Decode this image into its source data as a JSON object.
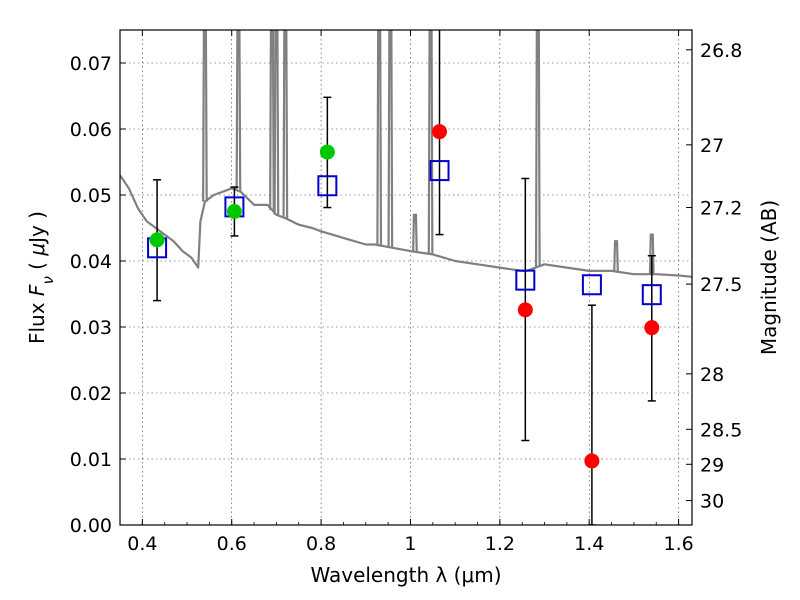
{
  "chart_data": {
    "type": "scatter",
    "title": "",
    "xlabel": "Wavelength  λ (μm)",
    "ylabel": "Flux  F_ν  ( μJy )",
    "ylabel_right": "Magnitude (AB)",
    "xlim": [
      0.35,
      1.63
    ],
    "ylim": [
      0.0,
      0.075
    ],
    "grid": true,
    "x_ticks": [
      0.4,
      0.6,
      0.8,
      1.0,
      1.2,
      1.4,
      1.6
    ],
    "x_tick_labels": [
      "0.4",
      "0.6",
      "0.8",
      "1",
      "1.2",
      "1.4",
      "1.6"
    ],
    "y_ticks": [
      0.0,
      0.01,
      0.02,
      0.03,
      0.04,
      0.05,
      0.06,
      0.07
    ],
    "y_tick_labels": [
      "0.00",
      "0.01",
      "0.02",
      "0.03",
      "0.04",
      "0.05",
      "0.06",
      "0.07"
    ],
    "right_ticks": [
      {
        "flux": 0.072,
        "label": "26.8"
      },
      {
        "flux": 0.0576,
        "label": "27"
      },
      {
        "flux": 0.0481,
        "label": "27.2"
      },
      {
        "flux": 0.0365,
        "label": "27.5"
      },
      {
        "flux": 0.0229,
        "label": "28"
      },
      {
        "flux": 0.0145,
        "label": "28.5"
      },
      {
        "flux": 0.0092,
        "label": "29"
      },
      {
        "flux": 0.0037,
        "label": "30"
      }
    ],
    "model_spectrum": {
      "color": "#808080",
      "x": [
        0.35,
        0.37,
        0.39,
        0.41,
        0.43,
        0.45,
        0.47,
        0.49,
        0.51,
        0.525,
        0.53,
        0.54,
        0.56,
        0.58,
        0.6,
        0.62,
        0.65,
        0.68,
        0.7,
        0.72,
        0.75,
        0.78,
        0.8,
        0.85,
        0.9,
        0.92,
        0.96,
        1.0,
        1.05,
        1.1,
        1.15,
        1.2,
        1.25,
        1.26,
        1.3,
        1.35,
        1.4,
        1.45,
        1.5,
        1.55,
        1.6,
        1.63
      ],
      "y": [
        0.053,
        0.051,
        0.048,
        0.046,
        0.045,
        0.044,
        0.043,
        0.0415,
        0.0405,
        0.039,
        0.046,
        0.049,
        0.05,
        0.0505,
        0.051,
        0.0505,
        0.0485,
        0.0485,
        0.047,
        0.0465,
        0.0455,
        0.045,
        0.0445,
        0.0435,
        0.0425,
        0.0425,
        0.042,
        0.0415,
        0.041,
        0.04,
        0.0395,
        0.039,
        0.0385,
        0.0385,
        0.0395,
        0.039,
        0.0385,
        0.0385,
        0.038,
        0.038,
        0.0378,
        0.0376
      ],
      "spikes": [
        {
          "x": 0.54,
          "peak": 0.075
        },
        {
          "x": 0.615,
          "peak": 0.075
        },
        {
          "x": 0.69,
          "peak": 0.075
        },
        {
          "x": 0.7,
          "peak": 0.075
        },
        {
          "x": 0.72,
          "peak": 0.075
        },
        {
          "x": 0.93,
          "peak": 0.075
        },
        {
          "x": 0.955,
          "peak": 0.075
        },
        {
          "x": 1.01,
          "peak": 0.047
        },
        {
          "x": 1.045,
          "peak": 0.075
        },
        {
          "x": 1.285,
          "peak": 0.075
        },
        {
          "x": 1.46,
          "peak": 0.043
        },
        {
          "x": 1.54,
          "peak": 0.044
        }
      ]
    },
    "series": [
      {
        "marker": "square",
        "color": "#0000cc",
        "points": [
          {
            "x": 0.433,
            "y": 0.042
          },
          {
            "x": 0.606,
            "y": 0.0482
          },
          {
            "x": 0.814,
            "y": 0.0514
          },
          {
            "x": 1.065,
            "y": 0.0537
          },
          {
            "x": 1.257,
            "y": 0.0371
          },
          {
            "x": 1.406,
            "y": 0.0364
          },
          {
            "x": 1.54,
            "y": 0.0349
          }
        ]
      },
      {
        "marker": "circle",
        "color": "#00c800",
        "points": [
          {
            "x": 0.433,
            "y": 0.0432
          },
          {
            "x": 0.606,
            "y": 0.0475
          },
          {
            "x": 0.814,
            "y": 0.0565
          }
        ]
      },
      {
        "marker": "circle",
        "color": "#ff0000",
        "points": [
          {
            "x": 1.065,
            "y": 0.0596
          },
          {
            "x": 1.257,
            "y": 0.0326
          },
          {
            "x": 1.406,
            "y": 0.0097
          },
          {
            "x": 1.54,
            "y": 0.0299
          }
        ]
      }
    ],
    "error_bars": [
      {
        "x": 0.433,
        "low": 0.034,
        "high": 0.0523
      },
      {
        "x": 0.606,
        "low": 0.0438,
        "high": 0.0512
      },
      {
        "x": 0.814,
        "low": 0.0481,
        "high": 0.0648
      },
      {
        "x": 1.065,
        "low": 0.044,
        "high": 0.076
      },
      {
        "x": 1.257,
        "low": 0.0128,
        "high": 0.0525
      },
      {
        "x": 1.406,
        "low": 0.0,
        "high": 0.0333
      },
      {
        "x": 1.54,
        "low": 0.0188,
        "high": 0.0408
      }
    ]
  }
}
